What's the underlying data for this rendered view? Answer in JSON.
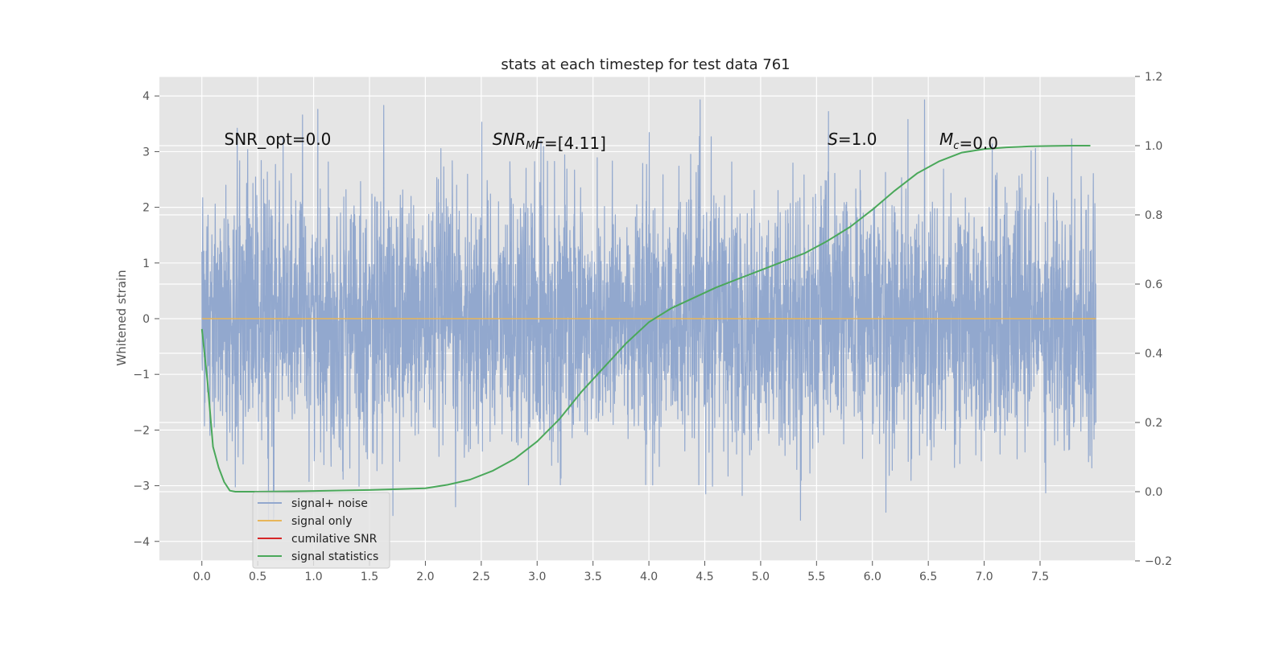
{
  "chart_data": {
    "type": "line",
    "title": "stats at each timestep for test data 761",
    "xlabel": "",
    "ylabel": "Whitened strain",
    "y2label": "",
    "xlim": [
      -0.38,
      8.35
    ],
    "ylim": [
      -4.35,
      4.35
    ],
    "y2lim": [
      -0.2,
      1.2
    ],
    "xticks": [
      0.0,
      0.5,
      1.0,
      1.5,
      2.0,
      2.5,
      3.0,
      3.5,
      4.0,
      4.5,
      5.0,
      5.5,
      6.0,
      6.5,
      7.0,
      7.5
    ],
    "xtick_labels": [
      "0.0",
      "0.5",
      "1.0",
      "1.5",
      "2.0",
      "2.5",
      "3.0",
      "3.5",
      "4.0",
      "4.5",
      "5.0",
      "5.5",
      "6.0",
      "6.5",
      "7.0",
      "7.5"
    ],
    "yticks": [
      -4,
      -3,
      -2,
      -1,
      0,
      1,
      2,
      3,
      4
    ],
    "ytick_labels": [
      "−4",
      "−3",
      "−2",
      "−1",
      "0",
      "1",
      "2",
      "3",
      "4"
    ],
    "y2ticks": [
      -0.2,
      0.0,
      0.2,
      0.4,
      0.6,
      0.8,
      1.0,
      1.2
    ],
    "y2tick_labels": [
      "−0.2",
      "0.0",
      "0.2",
      "0.4",
      "0.6",
      "0.8",
      "1.0",
      "1.2"
    ],
    "grid": true,
    "legend_position": "lower-left",
    "annotations": [
      {
        "name": "snr-opt",
        "text": "SNR_opt=0.0",
        "x": 0.2,
        "y": 3.12,
        "italic_part": ""
      },
      {
        "name": "snr-mf",
        "prefix": "SNR",
        "sub": "M",
        "mid": "F",
        "suffix": "=[4.11]",
        "x": 2.6,
        "y": 3.12,
        "italic_part": "SNR_MF"
      },
      {
        "name": "s-stat",
        "prefix": "S",
        "sub": "",
        "mid": "",
        "suffix": "=1.0",
        "x": 5.6,
        "y": 3.12,
        "italic_part": "S"
      },
      {
        "name": "mc",
        "prefix": "M",
        "sub": "c",
        "mid": "",
        "suffix": "=0.0",
        "x": 6.6,
        "y": 3.12,
        "italic_part": "M_c"
      }
    ],
    "series": [
      {
        "name": "signal+ noise",
        "color": "#92a8ce",
        "axis": "left",
        "kind": "noise",
        "x_range": [
          0.0,
          8.0
        ],
        "envelope_max": 3.93,
        "envelope_min": -3.62,
        "typical_abs": 1.8
      },
      {
        "name": "signal only",
        "color": "#e8b65a",
        "axis": "left",
        "x": [
          0.0,
          8.0
        ],
        "y": [
          0.0,
          0.0
        ]
      },
      {
        "name": "cumilative SNR",
        "color": "#d62728",
        "axis": "right",
        "x": [],
        "y": []
      },
      {
        "name": "signal statistics",
        "color": "#4aa85a",
        "axis": "right",
        "x": [
          0.0,
          0.05,
          0.1,
          0.15,
          0.2,
          0.25,
          0.3,
          0.5,
          1.0,
          1.5,
          2.0,
          2.2,
          2.4,
          2.6,
          2.8,
          3.0,
          3.2,
          3.4,
          3.6,
          3.8,
          4.0,
          4.2,
          4.4,
          4.6,
          4.8,
          5.0,
          5.2,
          5.4,
          5.6,
          5.8,
          6.0,
          6.2,
          6.4,
          6.6,
          6.8,
          7.0,
          7.2,
          7.4,
          7.6,
          7.8,
          7.95
        ],
        "y": [
          0.47,
          0.32,
          0.13,
          0.07,
          0.028,
          0.003,
          0.0,
          0.0,
          0.002,
          0.005,
          0.01,
          0.02,
          0.035,
          0.06,
          0.095,
          0.145,
          0.21,
          0.29,
          0.36,
          0.43,
          0.49,
          0.53,
          0.56,
          0.59,
          0.615,
          0.64,
          0.665,
          0.69,
          0.725,
          0.765,
          0.815,
          0.87,
          0.92,
          0.955,
          0.98,
          0.99,
          0.995,
          0.998,
          0.999,
          1.0,
          1.0
        ]
      }
    ]
  }
}
